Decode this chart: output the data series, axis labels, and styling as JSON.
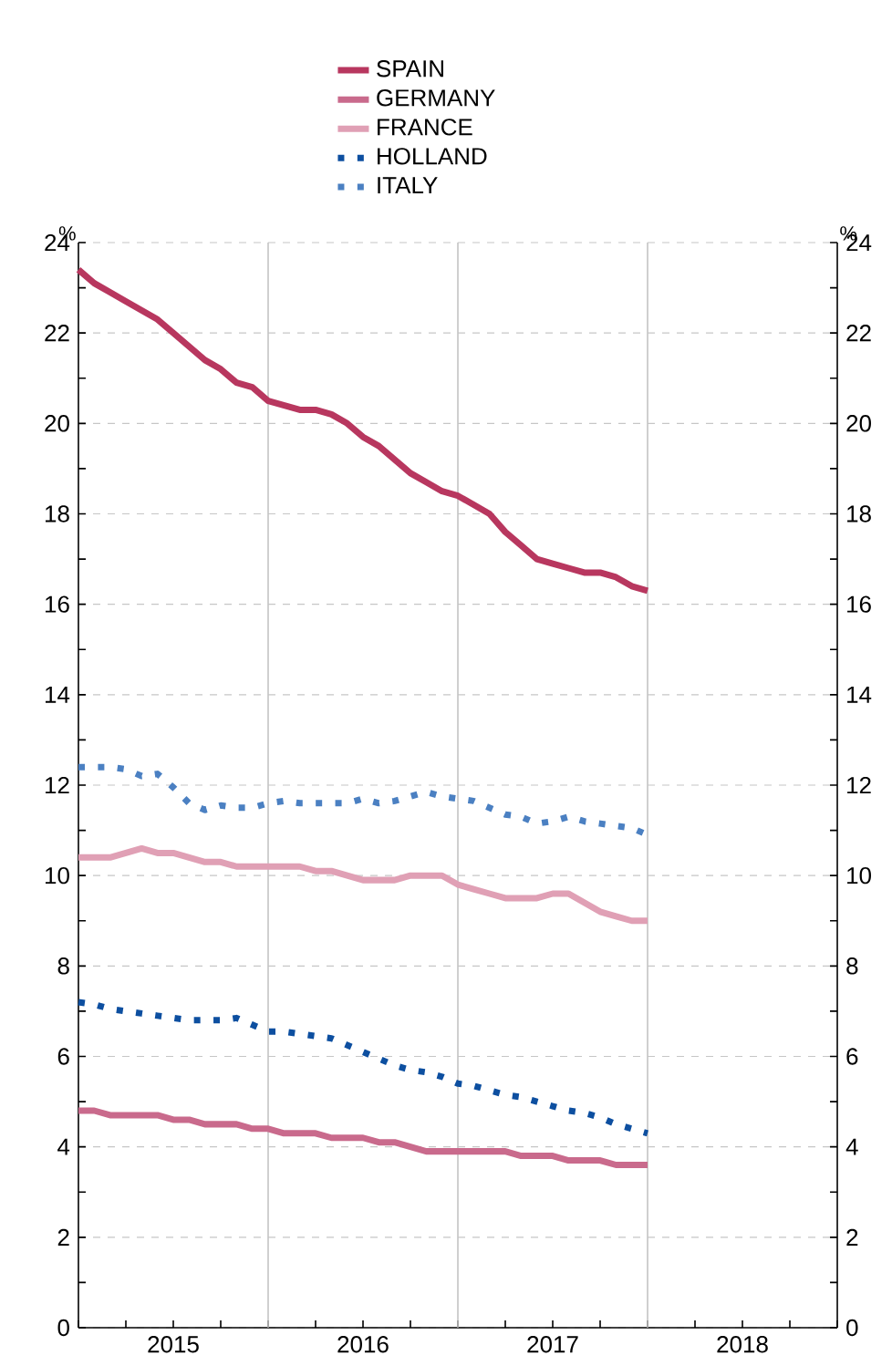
{
  "chart_data": {
    "type": "line",
    "ylabel": "%",
    "y2label": "%",
    "x": [
      "2015-01",
      "2015-02",
      "2015-03",
      "2015-04",
      "2015-05",
      "2015-06",
      "2015-07",
      "2015-08",
      "2015-09",
      "2015-10",
      "2015-11",
      "2015-12",
      "2016-01",
      "2016-02",
      "2016-03",
      "2016-04",
      "2016-05",
      "2016-06",
      "2016-07",
      "2016-08",
      "2016-09",
      "2016-10",
      "2016-11",
      "2016-12",
      "2017-01",
      "2017-02",
      "2017-03",
      "2017-04",
      "2017-05",
      "2017-06",
      "2017-07",
      "2017-08",
      "2017-09",
      "2017-10",
      "2017-11",
      "2017-12",
      "2018-01"
    ],
    "series": [
      {
        "name": "SPAIN",
        "color": "#b8375f",
        "line_style": "solid",
        "values": [
          23.4,
          23.1,
          22.9,
          22.7,
          22.5,
          22.3,
          22.0,
          21.7,
          21.4,
          21.2,
          20.9,
          20.8,
          20.5,
          20.4,
          20.3,
          20.3,
          20.2,
          20.0,
          19.7,
          19.5,
          19.2,
          18.9,
          18.7,
          18.5,
          18.4,
          18.2,
          18.0,
          17.6,
          17.3,
          17.0,
          16.9,
          16.8,
          16.7,
          16.7,
          16.6,
          16.4,
          16.3
        ]
      },
      {
        "name": "GERMANY",
        "color": "#c96a8c",
        "line_style": "solid",
        "values": [
          4.8,
          4.8,
          4.7,
          4.7,
          4.7,
          4.7,
          4.6,
          4.6,
          4.5,
          4.5,
          4.5,
          4.4,
          4.4,
          4.3,
          4.3,
          4.3,
          4.2,
          4.2,
          4.2,
          4.1,
          4.1,
          4.0,
          3.9,
          3.9,
          3.9,
          3.9,
          3.9,
          3.9,
          3.8,
          3.8,
          3.8,
          3.7,
          3.7,
          3.7,
          3.6,
          3.6,
          3.6
        ]
      },
      {
        "name": "FRANCE",
        "color": "#e0a0b5",
        "line_style": "solid",
        "values": [
          10.4,
          10.4,
          10.4,
          10.5,
          10.6,
          10.5,
          10.5,
          10.4,
          10.3,
          10.3,
          10.2,
          10.2,
          10.2,
          10.2,
          10.2,
          10.1,
          10.1,
          10.0,
          9.9,
          9.9,
          9.9,
          10.0,
          10.0,
          10.0,
          9.8,
          9.7,
          9.6,
          9.5,
          9.5,
          9.5,
          9.6,
          9.6,
          9.4,
          9.2,
          9.1,
          9.0,
          9.0
        ]
      },
      {
        "name": "HOLLAND",
        "color": "#0d4fa0",
        "line_style": "dotted",
        "values": [
          7.2,
          7.15,
          7.05,
          7.0,
          6.95,
          6.9,
          6.85,
          6.8,
          6.8,
          6.8,
          6.85,
          6.7,
          6.55,
          6.55,
          6.5,
          6.45,
          6.4,
          6.25,
          6.1,
          5.95,
          5.8,
          5.7,
          5.65,
          5.55,
          5.4,
          5.35,
          5.25,
          5.15,
          5.1,
          5.0,
          4.9,
          4.8,
          4.75,
          4.65,
          4.5,
          4.4,
          4.3
        ]
      },
      {
        "name": "ITALY",
        "color": "#4b80c2",
        "line_style": "dotted",
        "values": [
          12.4,
          12.4,
          12.4,
          12.35,
          12.2,
          12.25,
          11.95,
          11.6,
          11.45,
          11.55,
          11.5,
          11.5,
          11.6,
          11.65,
          11.6,
          11.6,
          11.6,
          11.6,
          11.7,
          11.6,
          11.65,
          11.75,
          11.85,
          11.75,
          11.7,
          11.65,
          11.5,
          11.35,
          11.3,
          11.15,
          11.2,
          11.3,
          11.2,
          11.15,
          11.1,
          11.05,
          10.9
        ]
      }
    ],
    "xlim": [
      "2015-01",
      "2019-01"
    ],
    "xticks": [
      {
        "value": "2015-01",
        "label": null
      },
      {
        "value": "2015-04",
        "label": null
      },
      {
        "value": "2015-07",
        "label": "2015"
      },
      {
        "value": "2015-10",
        "label": null
      },
      {
        "value": "2016-01",
        "label": null
      },
      {
        "value": "2016-04",
        "label": null
      },
      {
        "value": "2016-07",
        "label": "2016"
      },
      {
        "value": "2016-10",
        "label": null
      },
      {
        "value": "2017-01",
        "label": null
      },
      {
        "value": "2017-04",
        "label": null
      },
      {
        "value": "2017-07",
        "label": "2017"
      },
      {
        "value": "2017-10",
        "label": null
      },
      {
        "value": "2018-01",
        "label": null
      },
      {
        "value": "2018-04",
        "label": null
      },
      {
        "value": "2018-07",
        "label": "2018"
      },
      {
        "value": "2018-10",
        "label": null
      },
      {
        "value": "2019-01",
        "label": null
      }
    ],
    "ylim": [
      0,
      24
    ],
    "yticks": [
      0,
      {
        "value": 1,
        "label": null
      },
      2,
      {
        "value": 3,
        "label": null
      },
      4,
      {
        "value": 5,
        "label": null
      },
      6,
      {
        "value": 7,
        "label": null
      },
      8,
      {
        "value": 9,
        "label": null
      },
      10,
      {
        "value": 11,
        "label": null
      },
      12,
      {
        "value": 13,
        "label": null
      },
      14,
      {
        "value": 15,
        "label": null
      },
      16,
      {
        "value": 17,
        "label": null
      },
      18,
      {
        "value": 19,
        "label": null
      },
      20,
      {
        "value": 21,
        "label": null
      },
      22,
      {
        "value": 23,
        "label": null
      },
      24
    ],
    "y2lim": [
      0,
      24
    ],
    "y2ticks": [
      0,
      {
        "value": 1,
        "label": null
      },
      2,
      {
        "value": 3,
        "label": null
      },
      4,
      {
        "value": 5,
        "label": null
      },
      6,
      {
        "value": 7,
        "label": null
      },
      8,
      {
        "value": 9,
        "label": null
      },
      10,
      {
        "value": 11,
        "label": null
      },
      12,
      {
        "value": 13,
        "label": null
      },
      14,
      {
        "value": 15,
        "label": null
      },
      16,
      {
        "value": 17,
        "label": null
      },
      18,
      {
        "value": 19,
        "label": null
      },
      20,
      {
        "value": 21,
        "label": null
      },
      22,
      {
        "value": 23,
        "label": null
      },
      24
    ],
    "ref_lines": [
      {
        "axis": "x",
        "value": "2016-01",
        "color": "#c4c4c4"
      },
      {
        "axis": "x",
        "value": "2017-01",
        "color": "#c4c4c4"
      },
      {
        "axis": "x",
        "value": "2018-01",
        "color": "#c4c4c4"
      }
    ],
    "grid": "y",
    "legend": "top",
    "marker": "none"
  }
}
